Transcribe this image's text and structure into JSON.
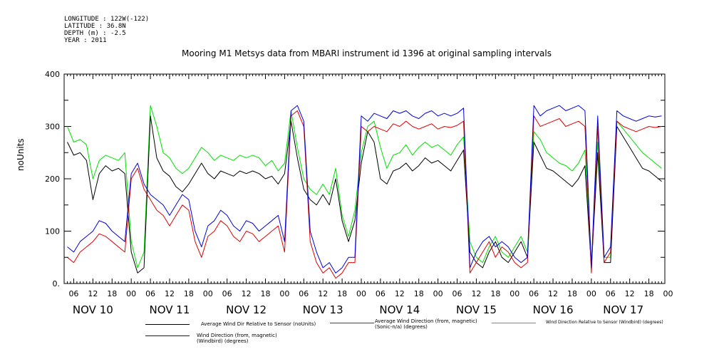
{
  "meta": {
    "longitude": "LONGITUDE : 122W(-122)",
    "latitude": "LATITUDE : 36.8N",
    "depth": "DEPTH (m) : -2.5",
    "year": "YEAR : 2011"
  },
  "chart_data": {
    "type": "line",
    "title": "Mooring M1 Metsys data from MBARI instrument id 1396 at original sampling intervals",
    "ylabel": "noUnits",
    "xlabel": "",
    "ylim": [
      0,
      400
    ],
    "yticks": [
      "0.",
      "100",
      "200",
      "300",
      "400"
    ],
    "xlim": [
      3,
      191
    ],
    "x_units": "hours since NOV 10 00:00",
    "xtick_labels": [
      "06",
      "12",
      "18",
      "00",
      "06",
      "12",
      "18",
      "00",
      "06",
      "12",
      "18",
      "00",
      "06",
      "12",
      "18",
      "00",
      "06",
      "12",
      "18",
      "00",
      "06",
      "12",
      "18",
      "00",
      "06",
      "12",
      "18",
      "00",
      "06",
      "12",
      "18",
      "00"
    ],
    "day_labels": [
      "NOV 10",
      "NOV 11",
      "NOV 12",
      "NOV 13",
      "NOV 14",
      "NOV 15",
      "NOV 16",
      "NOV 17"
    ],
    "grid": false,
    "legend_placement": "bottom",
    "series": [
      {
        "name": "Average Wind Dir Relative to Sensor (noUnits)",
        "color": "#000000",
        "x": [
          4,
          6,
          8,
          10,
          12,
          14,
          16,
          18,
          20,
          22,
          24,
          26,
          28,
          30,
          32,
          34,
          36,
          38,
          40,
          42,
          44,
          46,
          48,
          50,
          52,
          54,
          56,
          58,
          60,
          62,
          64,
          66,
          68,
          70,
          72,
          74,
          76,
          78,
          80,
          82,
          84,
          86,
          88,
          90,
          92,
          94,
          96,
          98,
          100,
          102,
          104,
          106,
          108,
          110,
          112,
          114,
          116,
          118,
          120,
          122,
          124,
          126,
          128,
          130,
          132,
          134,
          136,
          138,
          140,
          142,
          144,
          146,
          148,
          150,
          152,
          154,
          156,
          158,
          160,
          162,
          164,
          166,
          168,
          170,
          172,
          174,
          176,
          178,
          180,
          182,
          184,
          186,
          188,
          190
        ],
        "values": [
          270,
          245,
          250,
          235,
          160,
          210,
          225,
          215,
          220,
          210,
          60,
          20,
          30,
          320,
          240,
          215,
          205,
          185,
          175,
          190,
          210,
          230,
          210,
          200,
          215,
          210,
          205,
          215,
          210,
          215,
          210,
          200,
          205,
          190,
          210,
          310,
          240,
          180,
          160,
          150,
          170,
          150,
          200,
          120,
          80,
          120,
          230,
          290,
          270,
          200,
          190,
          215,
          220,
          230,
          215,
          225,
          240,
          230,
          235,
          225,
          215,
          235,
          255,
          60,
          40,
          30,
          60,
          80,
          50,
          40,
          60,
          80,
          50,
          270,
          245,
          220,
          215,
          205,
          195,
          185,
          200,
          225,
          30,
          250,
          40,
          40,
          300,
          280,
          260,
          240,
          220,
          215,
          205,
          195
        ]
      },
      {
        "name": "Average Wind Direction (from, magnetic) (Sonic-n/a) (degrees)",
        "color": "#e00000",
        "x": [
          4,
          6,
          8,
          10,
          12,
          14,
          16,
          18,
          20,
          22,
          24,
          26,
          28,
          30,
          32,
          34,
          36,
          38,
          40,
          42,
          44,
          46,
          48,
          50,
          52,
          54,
          56,
          58,
          60,
          62,
          64,
          66,
          68,
          70,
          72,
          74,
          76,
          78,
          80,
          82,
          84,
          86,
          88,
          90,
          92,
          94,
          96,
          98,
          100,
          102,
          104,
          106,
          108,
          110,
          112,
          114,
          116,
          118,
          120,
          122,
          124,
          126,
          128,
          130,
          132,
          134,
          136,
          138,
          140,
          142,
          144,
          146,
          148,
          150,
          152,
          154,
          156,
          158,
          160,
          162,
          164,
          166,
          168,
          170,
          172,
          174,
          176,
          178,
          180,
          182,
          184,
          186,
          188,
          190
        ],
        "values": [
          50,
          40,
          60,
          70,
          80,
          95,
          90,
          80,
          70,
          60,
          200,
          220,
          180,
          160,
          140,
          130,
          110,
          130,
          150,
          140,
          80,
          50,
          90,
          100,
          120,
          110,
          90,
          80,
          100,
          95,
          80,
          90,
          100,
          110,
          60,
          320,
          330,
          300,
          80,
          40,
          20,
          30,
          10,
          20,
          40,
          40,
          300,
          290,
          300,
          295,
          290,
          305,
          300,
          310,
          300,
          295,
          300,
          305,
          295,
          300,
          298,
          302,
          310,
          20,
          40,
          60,
          80,
          50,
          70,
          60,
          40,
          30,
          40,
          320,
          300,
          305,
          310,
          315,
          300,
          305,
          310,
          300,
          20,
          300,
          40,
          60,
          310,
          300,
          295,
          290,
          295,
          300,
          298,
          300
        ]
      },
      {
        "name": "Wind Direction Relative to Sensor (Windbird) (degrees)",
        "color": "#00e000",
        "x": [
          4,
          6,
          8,
          10,
          12,
          14,
          16,
          18,
          20,
          22,
          24,
          26,
          28,
          30,
          32,
          34,
          36,
          38,
          40,
          42,
          44,
          46,
          48,
          50,
          52,
          54,
          56,
          58,
          60,
          62,
          64,
          66,
          68,
          70,
          72,
          74,
          76,
          78,
          80,
          82,
          84,
          86,
          88,
          90,
          92,
          94,
          96,
          98,
          100,
          102,
          104,
          106,
          108,
          110,
          112,
          114,
          116,
          118,
          120,
          122,
          124,
          126,
          128,
          130,
          132,
          134,
          136,
          138,
          140,
          142,
          144,
          146,
          148,
          150,
          152,
          154,
          156,
          158,
          160,
          162,
          164,
          166,
          168,
          170,
          172,
          174,
          176,
          178,
          180,
          182,
          184,
          186,
          188,
          190
        ],
        "values": [
          300,
          270,
          275,
          265,
          200,
          235,
          245,
          240,
          235,
          250,
          80,
          30,
          60,
          340,
          300,
          250,
          240,
          220,
          210,
          220,
          240,
          260,
          250,
          235,
          245,
          240,
          235,
          245,
          240,
          245,
          240,
          225,
          235,
          215,
          230,
          330,
          260,
          200,
          180,
          170,
          190,
          170,
          220,
          130,
          90,
          140,
          250,
          300,
          310,
          260,
          220,
          245,
          250,
          265,
          245,
          260,
          270,
          260,
          265,
          255,
          245,
          265,
          280,
          80,
          50,
          40,
          70,
          90,
          60,
          50,
          70,
          90,
          60,
          290,
          275,
          250,
          240,
          230,
          225,
          215,
          230,
          255,
          40,
          270,
          50,
          50,
          310,
          295,
          280,
          265,
          250,
          240,
          230,
          220
        ]
      },
      {
        "name": "Wind Direction (from, magnetic) (Windbird) (degrees)",
        "color": "#0000e0",
        "x": [
          4,
          6,
          8,
          10,
          12,
          14,
          16,
          18,
          20,
          22,
          24,
          26,
          28,
          30,
          32,
          34,
          36,
          38,
          40,
          42,
          44,
          46,
          48,
          50,
          52,
          54,
          56,
          58,
          60,
          62,
          64,
          66,
          68,
          70,
          72,
          74,
          76,
          78,
          80,
          82,
          84,
          86,
          88,
          90,
          92,
          94,
          96,
          98,
          100,
          102,
          104,
          106,
          108,
          110,
          112,
          114,
          116,
          118,
          120,
          122,
          124,
          126,
          128,
          130,
          132,
          134,
          136,
          138,
          140,
          142,
          144,
          146,
          148,
          150,
          152,
          154,
          156,
          158,
          160,
          162,
          164,
          166,
          168,
          170,
          172,
          174,
          176,
          178,
          180,
          182,
          184,
          186,
          188,
          190
        ],
        "values": [
          70,
          60,
          80,
          90,
          100,
          120,
          115,
          100,
          90,
          80,
          210,
          230,
          190,
          170,
          160,
          150,
          130,
          150,
          170,
          160,
          100,
          70,
          110,
          120,
          140,
          130,
          110,
          100,
          120,
          115,
          100,
          110,
          120,
          130,
          80,
          330,
          340,
          310,
          100,
          60,
          30,
          40,
          20,
          30,
          50,
          50,
          320,
          310,
          325,
          320,
          315,
          330,
          325,
          330,
          320,
          315,
          325,
          330,
          320,
          325,
          320,
          325,
          335,
          30,
          60,
          80,
          90,
          70,
          80,
          70,
          50,
          40,
          50,
          340,
          320,
          330,
          335,
          340,
          330,
          335,
          340,
          330,
          30,
          320,
          50,
          70,
          330,
          320,
          315,
          310,
          315,
          320,
          318,
          320
        ]
      }
    ]
  }
}
